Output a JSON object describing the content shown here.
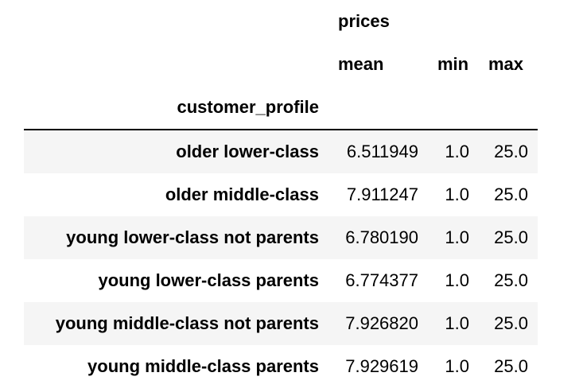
{
  "table": {
    "column_group": "prices",
    "columns": [
      "mean",
      "min",
      "max"
    ],
    "index_name": "customer_profile",
    "rows": [
      {
        "index": "older lower-class",
        "mean": "6.511949",
        "min": "1.0",
        "max": "25.0"
      },
      {
        "index": "older middle-class",
        "mean": "7.911247",
        "min": "1.0",
        "max": "25.0"
      },
      {
        "index": "young lower-class not parents",
        "mean": "6.780190",
        "min": "1.0",
        "max": "25.0"
      },
      {
        "index": "young lower-class parents",
        "mean": "6.774377",
        "min": "1.0",
        "max": "25.0"
      },
      {
        "index": "young middle-class not parents",
        "mean": "7.926820",
        "min": "1.0",
        "max": "25.0"
      },
      {
        "index": "young middle-class parents",
        "mean": "7.929619",
        "min": "1.0",
        "max": "25.0"
      }
    ]
  },
  "colors": {
    "text": "#000000",
    "row_stripe": "#f5f5f5",
    "background": "#ffffff",
    "header_rule": "#000000"
  }
}
